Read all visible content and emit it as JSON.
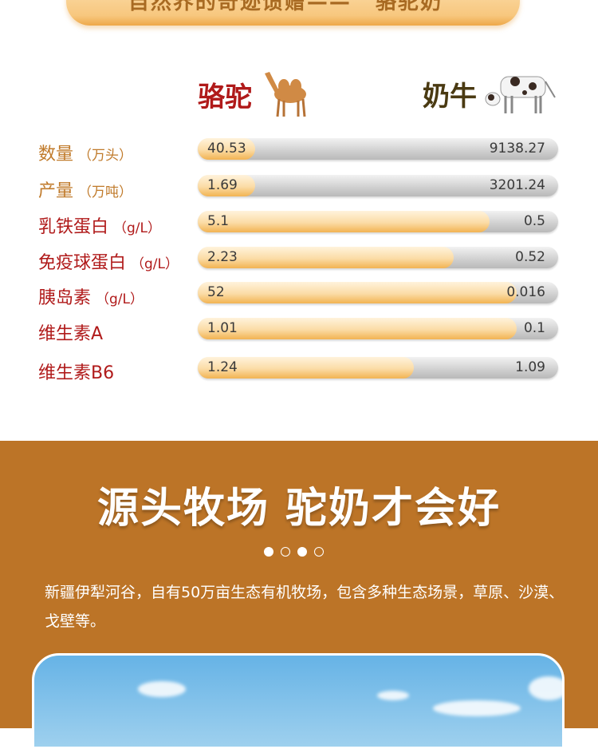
{
  "header": {
    "title": "自然界的奇迹馈赠—— “骆驼奶”"
  },
  "comparison": {
    "camel_label": "骆驼",
    "cow_label": "奶牛",
    "colors": {
      "label_orange": "#c07a2a",
      "label_red": "#b01a1a",
      "camel_fill": "#f2b352",
      "track": "#c8c8c8"
    },
    "rows": [
      {
        "label": "数量",
        "unit": "（万头）",
        "camel": "40.53",
        "cow": "9138.27",
        "camel_share": 0.16,
        "color": "orange"
      },
      {
        "label": "产量",
        "unit": "（万吨）",
        "camel": "1.69",
        "cow": "3201.24",
        "camel_share": 0.16,
        "color": "orange"
      },
      {
        "label": "乳铁蛋白",
        "unit": "（g/L）",
        "camel": "5.1",
        "cow": "0.5",
        "camel_share": 0.81,
        "color": "red"
      },
      {
        "label": "免疫球蛋白",
        "unit": "（g/L）",
        "camel": "2.23",
        "cow": "0.52",
        "camel_share": 0.71,
        "color": "red"
      },
      {
        "label": "胰岛素",
        "unit": "（g/L）",
        "camel": "52",
        "cow": "0.016",
        "camel_share": 0.885,
        "color": "red"
      },
      {
        "label": "维生素A",
        "unit": "",
        "camel": "1.01",
        "cow": "0.1",
        "camel_share": 0.885,
        "color": "red"
      },
      {
        "label": "维生素B6",
        "unit": "",
        "camel": "1.24",
        "cow": "1.09",
        "camel_share": 0.6,
        "color": "red"
      }
    ]
  },
  "ranch": {
    "title": "源头牧场 驼奶才会好",
    "pager": {
      "total": 4,
      "filled": [
        0,
        2
      ]
    },
    "description": "新疆伊犁河谷，自有50万亩生态有机牧场，包含多种生态场景，草原、沙漠、戈壁等。",
    "background": "#bc7427"
  }
}
